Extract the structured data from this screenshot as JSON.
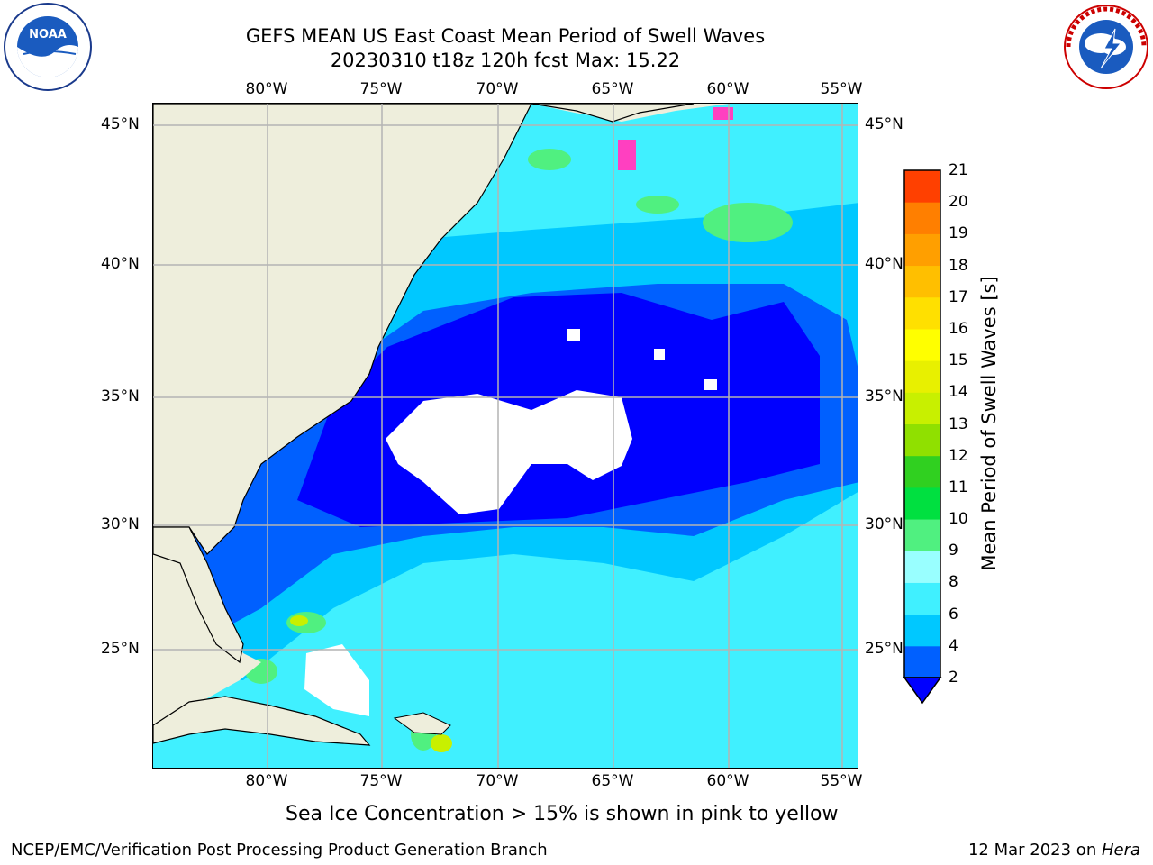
{
  "header": {
    "title_line1": "GEFS MEAN US East Coast Mean Period of Swell Waves",
    "title_line2": "20230310 t18z 120h fcst   Max: 15.22"
  },
  "logos": {
    "noaa": {
      "text": "NOAA",
      "ring_text": "NATIONAL OCEANIC AND ATMOSPHERIC ADMINISTRATION · U.S. DEPARTMENT OF COMMERCE"
    },
    "nws": {
      "ring_text": "NATIONAL WEATHER SERVICE"
    }
  },
  "map": {
    "lon_labels": [
      "80°W",
      "75°W",
      "70°W",
      "65°W",
      "60°W",
      "55°W"
    ],
    "lat_labels": [
      "45°N",
      "40°N",
      "35°N",
      "30°N",
      "25°N"
    ],
    "colors": {
      "land": "#eeeedc",
      "grid": "#b4b4b4",
      "coast": "#000000",
      "ice": "#ff40c0",
      "low": "#0000ff"
    }
  },
  "colorbar": {
    "label": "Mean Period of Swell Waves [s]",
    "ticks": [
      "2",
      "4",
      "6",
      "8",
      "9",
      "10",
      "11",
      "12",
      "13",
      "14",
      "15",
      "16",
      "17",
      "18",
      "19",
      "20",
      "21"
    ],
    "colors": [
      "#0060ff",
      "#00c8ff",
      "#40f0ff",
      "#99ffff",
      "#50f080",
      "#00e040",
      "#30d020",
      "#90e000",
      "#c8f000",
      "#e8f000",
      "#ffff00",
      "#ffe000",
      "#ffbf00",
      "#ff9f00",
      "#ff7f00",
      "#ff4000",
      "#ff0000"
    ],
    "extend_color": "#0000ff"
  },
  "notes": {
    "ice": "Sea Ice Concentration > 15% is shown in pink to yellow",
    "footer_left": "NCEP/EMC/Verification Post Processing Product Generation Branch",
    "footer_date": "12 Mar 2023 on ",
    "footer_host": "Hera"
  }
}
